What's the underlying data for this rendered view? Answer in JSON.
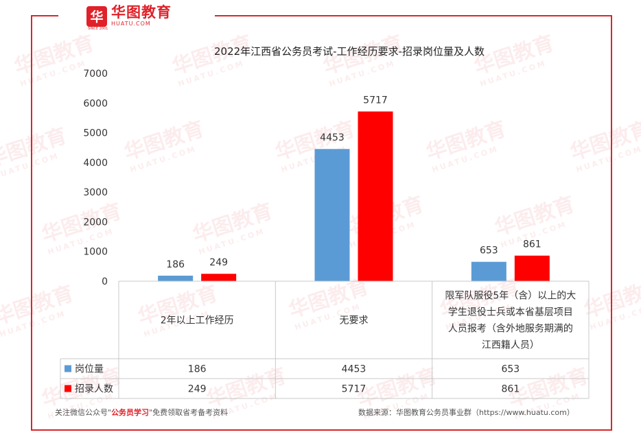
{
  "brand": {
    "logo_glyph": "华",
    "name_cn": "华图教育",
    "name_en": "HUATU.COM",
    "since": "SINCE 2001",
    "accent_color": "#e02129"
  },
  "watermark": {
    "text_cn": "华图教育",
    "text_en": "HUATU.COM"
  },
  "chart_data": {
    "type": "bar",
    "title": "2022年江西省公务员考试-工作经历要求-招录岗位量及人数",
    "categories": [
      "2年以上工作经历",
      "无要求",
      "限军队服役5年（含）以上的大学生退役士兵或本省基层项目人员报考（含外地服务期满的江西籍人员）"
    ],
    "category_lines": [
      [
        "2年以上工作经历"
      ],
      [
        "无要求"
      ],
      [
        "限军队服役5年（含）以上的大",
        "学生退役士兵或本省基层项目",
        "人员报考（含外地服务期满的",
        "江西籍人员）"
      ]
    ],
    "series": [
      {
        "name": "岗位量",
        "color": "#5b9bd5",
        "values": [
          186,
          4453,
          653
        ]
      },
      {
        "name": "招录人数",
        "color": "#ff0000",
        "values": [
          249,
          5717,
          861
        ]
      }
    ],
    "yticks": [
      0,
      1000,
      2000,
      3000,
      4000,
      5000,
      6000,
      7000
    ],
    "ylim": [
      0,
      7000
    ],
    "grid": false,
    "legend": "data-table"
  },
  "footer": {
    "left_prefix": "关注微信公众号\"",
    "left_highlight": "公务员学习",
    "left_suffix": "\"免费领取省考备考资料",
    "right": "数据来源：华图教育公务员事业群（https://www.huatu.com）"
  }
}
